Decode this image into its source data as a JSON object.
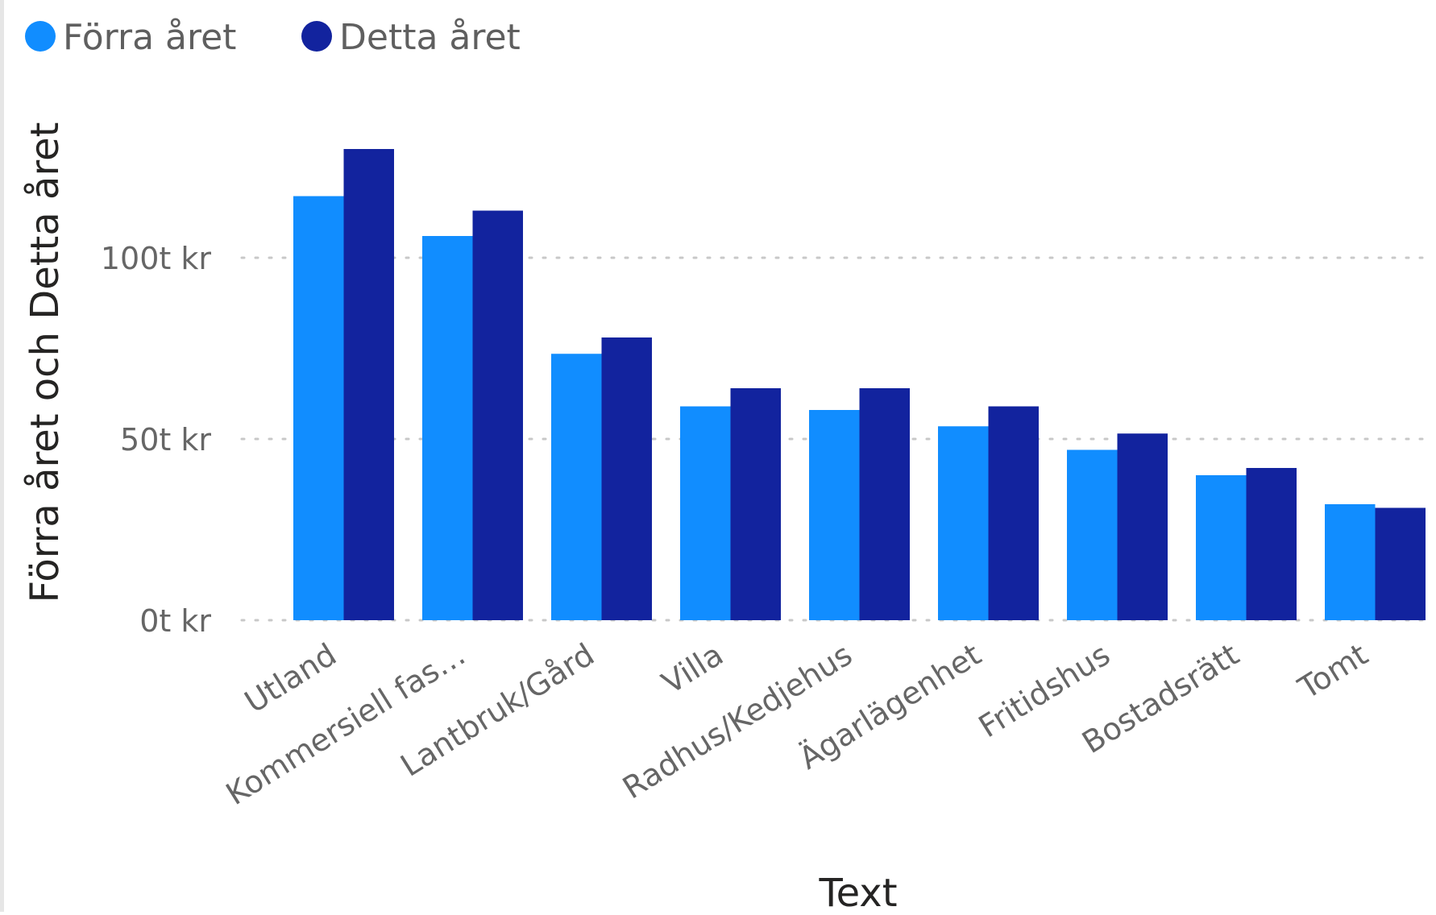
{
  "chart_data": {
    "type": "bar",
    "categories": [
      "Utland",
      "Kommersiell fas…",
      "Lantbruk/Gård",
      "Villa",
      "Radhus/Kedjehus",
      "Ägarlägenhet",
      "Fritidshus",
      "Bostadsrätt",
      "Tomt"
    ],
    "series": [
      {
        "name": "Förra året",
        "color": "#118DFF",
        "values": [
          117,
          106,
          73.5,
          59,
          58,
          53.5,
          47,
          40,
          32
        ]
      },
      {
        "name": "Detta året",
        "color": "#12239E",
        "values": [
          130,
          113,
          78,
          64,
          64,
          59,
          51.5,
          42,
          31
        ]
      }
    ],
    "xlabel": "Text",
    "ylabel": "Förra året och Detta året",
    "ylim": [
      0,
      150
    ],
    "yticks": [
      {
        "value": 0,
        "label": "0t kr"
      },
      {
        "value": 50,
        "label": "50t kr"
      },
      {
        "value": 100,
        "label": "100t kr"
      }
    ],
    "grid": true,
    "legend_position": "top-left"
  }
}
